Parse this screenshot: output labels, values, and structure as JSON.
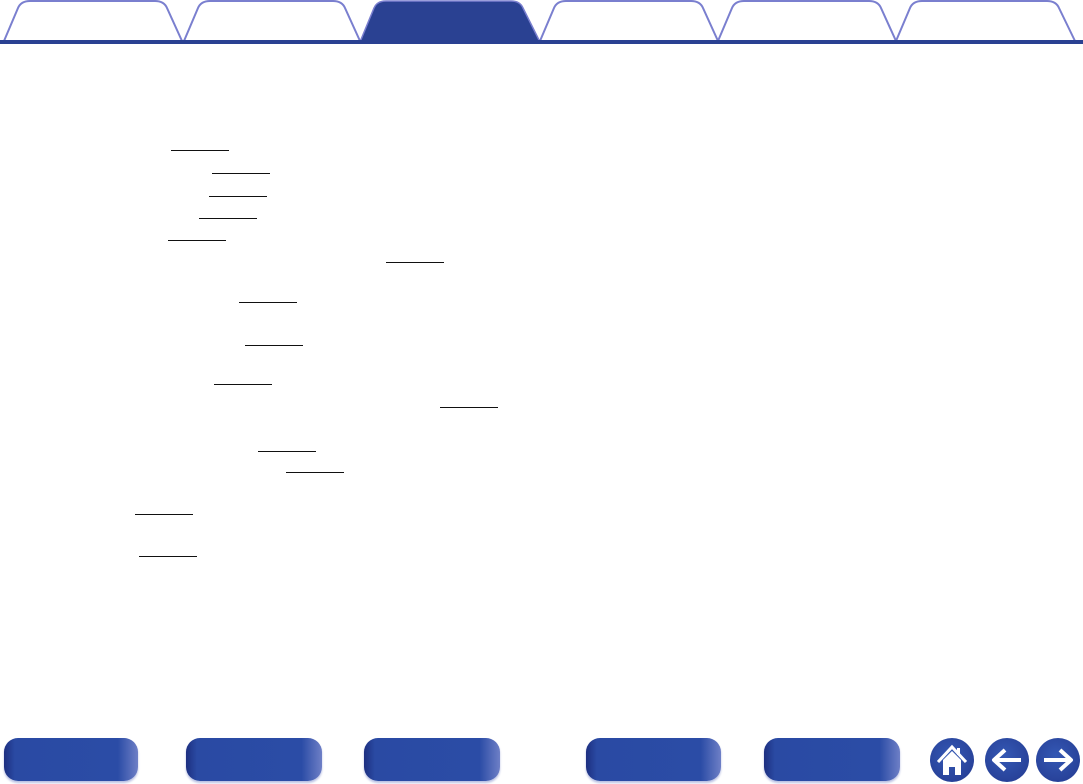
{
  "tabs": {
    "count": 6,
    "active_index": 2,
    "active_color": "#2a4192",
    "outline_color": "#7a7fcf"
  },
  "links": {
    "count": 14,
    "color": "#111111"
  },
  "footer": {
    "buttons": 5,
    "button_color": "#2b4ca6",
    "icons": [
      "home-icon",
      "arrow-left-icon",
      "arrow-right-icon"
    ]
  }
}
